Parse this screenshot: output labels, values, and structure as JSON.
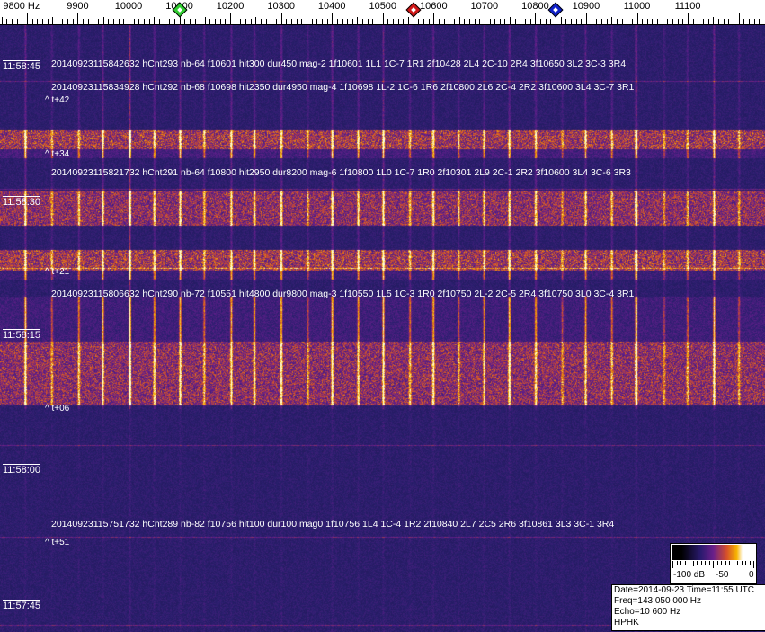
{
  "chart_data": {
    "type": "heatmap",
    "x_unit": "Hz",
    "x_ticks": [
      "9800 Hz",
      "9900",
      "10000",
      "10100",
      "10200",
      "10300",
      "10400",
      "10500",
      "10600",
      "10700",
      "10800",
      "10900",
      "11000",
      "11100"
    ],
    "x_tick_values": [
      9800,
      9900,
      10000,
      10100,
      10200,
      10300,
      10400,
      10500,
      10600,
      10700,
      10800,
      10900,
      11000,
      11100
    ],
    "xlim": [
      9750,
      11240
    ],
    "y_ticks": [
      "11:58:45",
      "11:58:30",
      "11:58:15",
      "11:58:00",
      "11:57:45"
    ],
    "markers": [
      {
        "freq": 10100,
        "color": "#2ecc2e"
      },
      {
        "freq": 10560,
        "color": "#d01818"
      },
      {
        "freq": 10840,
        "color": "#1020c8"
      }
    ],
    "annotations": [
      {
        "text": "20140923115842632 hCnt293 nb-64 f10601 hit300 dur450 mag-2 1f10601 1L1 1C-7 1R1 2f10428 2L4 2C-10 2R4 3f10650 3L2 3C-3 3R4",
        "offset": "^ t+42"
      },
      {
        "text": "20140923115834928 hCnt292 nb-68 f10698 hit2350 dur4950 mag-4 1f10698 1L-2 1C-6 1R6 2f10800 2L6 2C-4 2R2 3f10600 3L4 3C-7 3R1",
        "offset": "^ t+34"
      },
      {
        "text": "20140923115821732 hCnt291 nb-64 f10800 hit2950 dur8200 mag-6 1f10800 1L0 1C-7 1R0 2f10301 2L9 2C-1 2R2 3f10600 3L4 3C-6 3R3",
        "offset": "^ t+21"
      },
      {
        "text": "20140923115806632 hCnt290 nb-72 f10551 hit4800 dur9800 mag-3 1f10550 1L5 1C-3 1R0 2f10750 2L-2 2C-5 2R4 3f10750 3L0 3C-4 3R1",
        "offset": "^ t+06"
      },
      {
        "text": "20140923115751732 hCnt289 nb-82 f10756 hit100 dur100 mag0 1f10756 1L4 1C-4 1R2 2f10840 2L7 2C5 2R6 3f10861 3L3 3C-1 3R4",
        "offset": "^ t+51"
      }
    ],
    "colorbar": {
      "labels": [
        "-100 dB",
        "-50",
        "0"
      ],
      "range_db": [
        -100,
        0
      ]
    },
    "colors": {
      "background": "#2a1f6e",
      "signal": "#f7b400"
    }
  },
  "info": {
    "date_line": "Date=2014-09-23 Time=11:55 UTC",
    "freq_line": "Freq=143 050 000 Hz",
    "echo_line": "Echo=10 600 Hz",
    "station": "HPHK"
  }
}
